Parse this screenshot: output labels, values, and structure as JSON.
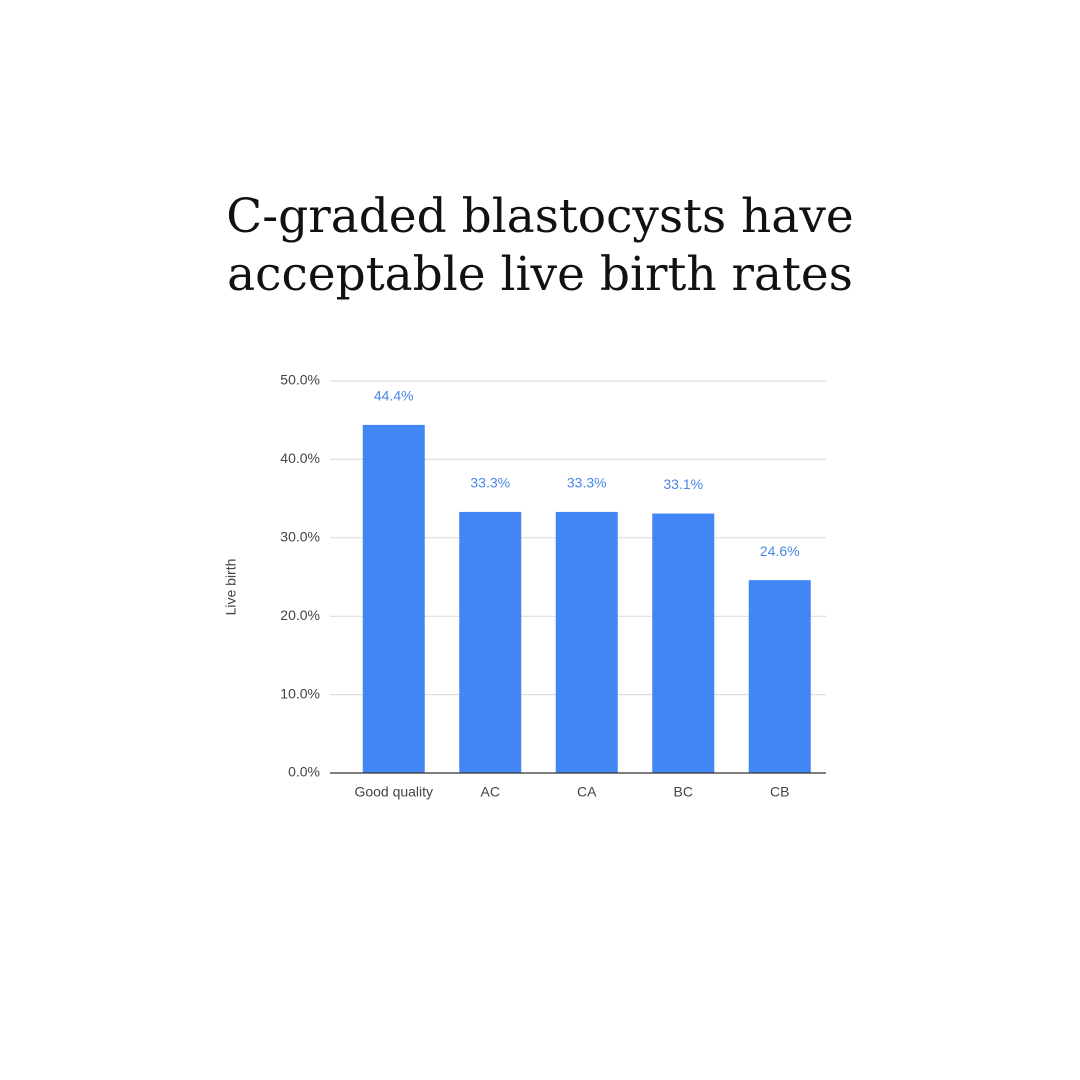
{
  "chart_data": {
    "type": "bar",
    "title": [
      "C-graded blastocysts have",
      "acceptable live birth rates"
    ],
    "y_label": "Live birth",
    "categories": [
      "Good quality",
      "AC",
      "CA",
      "BC",
      "CB"
    ],
    "values": [
      44.4,
      33.3,
      33.3,
      33.1,
      24.6
    ],
    "value_labels": [
      "44.4%",
      "33.3%",
      "33.3%",
      "33.1%",
      "24.6%"
    ],
    "color": "#4285f4",
    "ylim": [
      0,
      50
    ],
    "yticks": [
      {
        "value": 0,
        "label": "0.0%"
      },
      {
        "value": 10,
        "label": "10.0%"
      },
      {
        "value": 20,
        "label": "20.0%"
      },
      {
        "value": 30,
        "label": "30.0%"
      },
      {
        "value": 40,
        "label": "40.0%"
      },
      {
        "value": 50,
        "label": "50.0%"
      }
    ],
    "grid": true
  }
}
